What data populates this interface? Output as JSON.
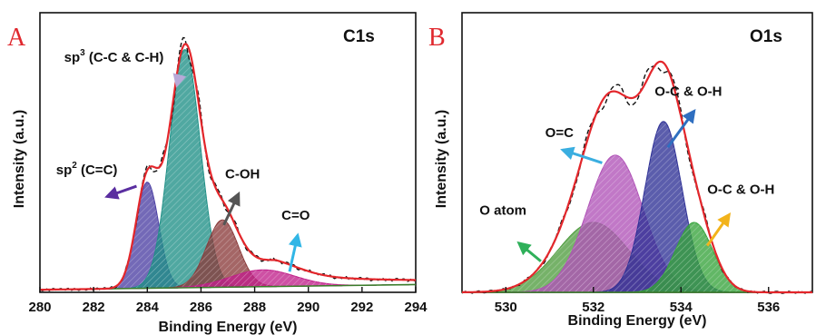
{
  "chart_data": [
    {
      "type": "area",
      "panel_label": "A",
      "title": "C1s",
      "xlabel": "Binding Energy (eV)",
      "ylabel": "Intensity (a.u.)",
      "xlim": [
        280,
        294
      ],
      "ylim": [
        0,
        1.08
      ],
      "xticks": [
        280,
        282,
        284,
        286,
        288,
        290,
        292,
        294
      ],
      "xtick_labels": [
        "280",
        "282",
        "284",
        "286",
        "288",
        "290",
        "292",
        "294"
      ],
      "baseline": {
        "x0": 280,
        "y0": 0.01,
        "x1": 294,
        "y1": 0.03
      },
      "envelope": {
        "name": "envelope",
        "color": "#e3262b",
        "tail_offset": 0.045
      },
      "raw": {
        "name": "raw",
        "color": "#111111"
      },
      "series": [
        {
          "name": "sp2 (C=C)",
          "center": 284.0,
          "height": 0.41,
          "fwhm": 1.0,
          "color": "#4b3fa3",
          "shape": "gauss"
        },
        {
          "name": "sp3 (C-C & C-H)",
          "center": 285.4,
          "height": 0.92,
          "fwhm": 1.35,
          "color": "#1f8f86",
          "shape": "gauss"
        },
        {
          "name": "C-OH",
          "center": 286.8,
          "height": 0.26,
          "fwhm": 1.4,
          "color": "#8a3b3b",
          "shape": "gauss"
        },
        {
          "name": "C=O",
          "center": 288.3,
          "height": 0.065,
          "fwhm": 2.8,
          "color": "#c0208a",
          "shape": "gauss"
        }
      ],
      "annotations": [
        {
          "text": "sp",
          "sup": "3",
          "rest": " (C-C & C-H)",
          "x": 280.9,
          "y": 0.89,
          "arrow": {
            "from": [
              285.2,
              0.84
            ],
            "to": [
              285.1,
              0.8
            ],
            "color": "#b7a9d8"
          }
        },
        {
          "text": "sp",
          "sup": "2",
          "rest": " (C=C)",
          "x": 280.6,
          "y": 0.455,
          "arrow": {
            "from": [
              283.6,
              0.41
            ],
            "to": [
              282.5,
              0.37
            ],
            "color": "#5a2ea0"
          }
        },
        {
          "text": "C-OH",
          "x": 286.9,
          "y": 0.44,
          "arrow": {
            "from": [
              286.85,
              0.26
            ],
            "to": [
              287.4,
              0.38
            ],
            "color": "#555555"
          }
        },
        {
          "text": "C=O",
          "x": 289.0,
          "y": 0.28,
          "arrow": {
            "from": [
              289.3,
              0.08
            ],
            "to": [
              289.6,
              0.22
            ],
            "color": "#31b6e6"
          }
        }
      ]
    },
    {
      "type": "area",
      "panel_label": "B",
      "title": "O1s",
      "xlabel": "Binding Energy (eV)",
      "ylabel": "Intensity (a.u.)",
      "xlim": [
        529,
        537
      ],
      "ylim": [
        0,
        1.08
      ],
      "xticks": [
        530,
        532,
        534,
        536
      ],
      "xtick_labels": [
        "530",
        "532",
        "534",
        "536"
      ],
      "baseline": {
        "x0": 529,
        "y0": 0.0,
        "x1": 537,
        "y1": 0.0
      },
      "envelope": {
        "name": "envelope",
        "color": "#e3262b",
        "tail_offset": 0.0
      },
      "raw": {
        "name": "raw",
        "color": "#111111"
      },
      "series": [
        {
          "name": "O atom",
          "center": 532.0,
          "height": 0.27,
          "fwhm": 1.9,
          "color": "#4f9c3f",
          "shape": "gauss"
        },
        {
          "name": "O=C",
          "center": 532.5,
          "height": 0.53,
          "fwhm": 1.5,
          "color": "#b052b7",
          "shape": "gauss"
        },
        {
          "name": "O-C & O-H",
          "center": 533.6,
          "height": 0.66,
          "fwhm": 1.0,
          "color": "#2d2f95",
          "shape": "gauss"
        },
        {
          "name": "O-C & O-H",
          "center": 534.3,
          "height": 0.27,
          "fwhm": 1.0,
          "color": "#36a33b",
          "shape": "gauss"
        }
      ],
      "annotations": [
        {
          "text": "O=C",
          "x": 530.9,
          "y": 0.6,
          "arrow": {
            "from": [
              532.2,
              0.5
            ],
            "to": [
              531.3,
              0.55
            ],
            "color": "#3aaee0"
          }
        },
        {
          "text": "O atom",
          "x": 529.4,
          "y": 0.3,
          "arrow": {
            "from": [
              530.8,
              0.12
            ],
            "to": [
              530.3,
              0.19
            ],
            "color": "#2fb05a"
          }
        },
        {
          "text": "O-C & O-H",
          "x": 533.4,
          "y": 0.76,
          "arrow": {
            "from": [
              533.7,
              0.56
            ],
            "to": [
              534.3,
              0.7
            ],
            "color": "#2f6fc0"
          }
        },
        {
          "text": "O-C & O-H",
          "x": 534.6,
          "y": 0.38,
          "arrow": {
            "from": [
              534.6,
              0.18
            ],
            "to": [
              535.1,
              0.3
            ],
            "color": "#f2b31b"
          }
        }
      ]
    }
  ]
}
